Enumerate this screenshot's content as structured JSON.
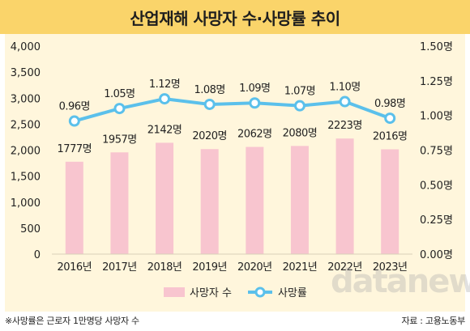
{
  "title": "산업재해 사망자 수·사망률 추이",
  "footnote": "※사망률은 근로자 1만명당 사망자 수",
  "source": "자료 : 고용노동부",
  "watermark": "datanews",
  "colors": {
    "title_bg": "#fad46a",
    "panel_bg": "#fff6dc",
    "bar": "#f8c5cf",
    "line": "#5bc0eb"
  },
  "chart_data": {
    "type": "bar+line",
    "categories": [
      "2016년",
      "2017년",
      "2018년",
      "2019년",
      "2020년",
      "2021년",
      "2022년",
      "2023년"
    ],
    "series": [
      {
        "name": "사망자 수",
        "type": "bar",
        "axis": "left",
        "values": [
          1777,
          1957,
          2142,
          2020,
          2062,
          2080,
          2223,
          2016
        ],
        "labels": [
          "1777명",
          "1957명",
          "2142명",
          "2020명",
          "2062명",
          "2080명",
          "2223명",
          "2016명"
        ]
      },
      {
        "name": "사망률",
        "type": "line",
        "axis": "right",
        "values": [
          0.96,
          1.05,
          1.12,
          1.08,
          1.09,
          1.07,
          1.1,
          0.98
        ],
        "labels": [
          "0.96명",
          "1.05명",
          "1.12명",
          "1.08명",
          "1.09명",
          "1.07명",
          "1.10명",
          "0.98명"
        ]
      }
    ],
    "y_left": {
      "min": 0,
      "max": 4000,
      "ticks": [
        0,
        500,
        1000,
        1500,
        2000,
        2500,
        3000,
        3500,
        4000
      ],
      "tick_labels": [
        "0",
        "500",
        "1,000",
        "1,500",
        "2,000",
        "2,500",
        "3,000",
        "3,500",
        "4,000"
      ]
    },
    "y_right": {
      "min": 0,
      "max": 1.5,
      "ticks": [
        0,
        0.25,
        0.5,
        0.75,
        1.0,
        1.25,
        1.5
      ],
      "tick_labels": [
        "0.00명",
        "0.25명",
        "0.50명",
        "0.75명",
        "1.00명",
        "1.25명",
        "1.50명"
      ]
    },
    "grid": false,
    "legend": "bottom-center"
  }
}
